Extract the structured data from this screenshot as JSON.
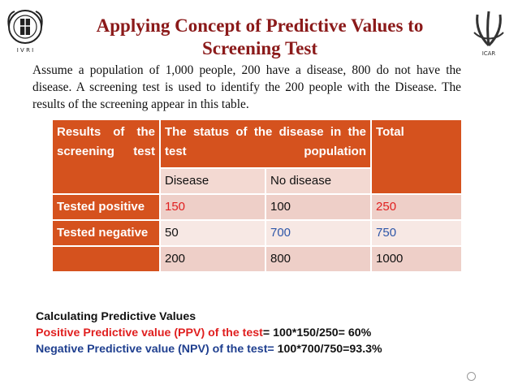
{
  "slide": {
    "title": "Applying Concept of Predictive Values to Screening Test",
    "intro": "Assume a population of 1,000 people, 200 have a disease, 800 do not have the disease. A screening test is used to identify the 200 people with the Disease. The results of the screening appear in this table."
  },
  "table": {
    "header_col1": "Results of the screening test",
    "header_col2": "The status of the disease in the test population",
    "header_total": "Total",
    "sub_disease": "Disease",
    "sub_no_disease": "No disease",
    "rows": [
      {
        "label": "Tested positive",
        "disease": "150",
        "no_disease": "100",
        "total": "250"
      },
      {
        "label": "Tested negative",
        "disease": "50",
        "no_disease": "700",
        "total": "750"
      },
      {
        "label": "",
        "disease": "200",
        "no_disease": "800",
        "total": "1000"
      }
    ]
  },
  "calc": {
    "heading": "Calculating Predictive Values",
    "ppv_label": "Positive Predictive value (PPV) of the test",
    "ppv_value": "= 100*150/250= 60%",
    "npv_label": "Negative Predictive value (NPV) of the test=",
    "npv_value": " 100*700/750=93.3%"
  },
  "logos": {
    "left_text": "I V R I",
    "right_text": "ICAR"
  },
  "colors": {
    "title": "#8b1a1a",
    "table_header": "#d5521e",
    "ppv_red": "#e01f1f",
    "npv_blue": "#1f3f8f"
  }
}
